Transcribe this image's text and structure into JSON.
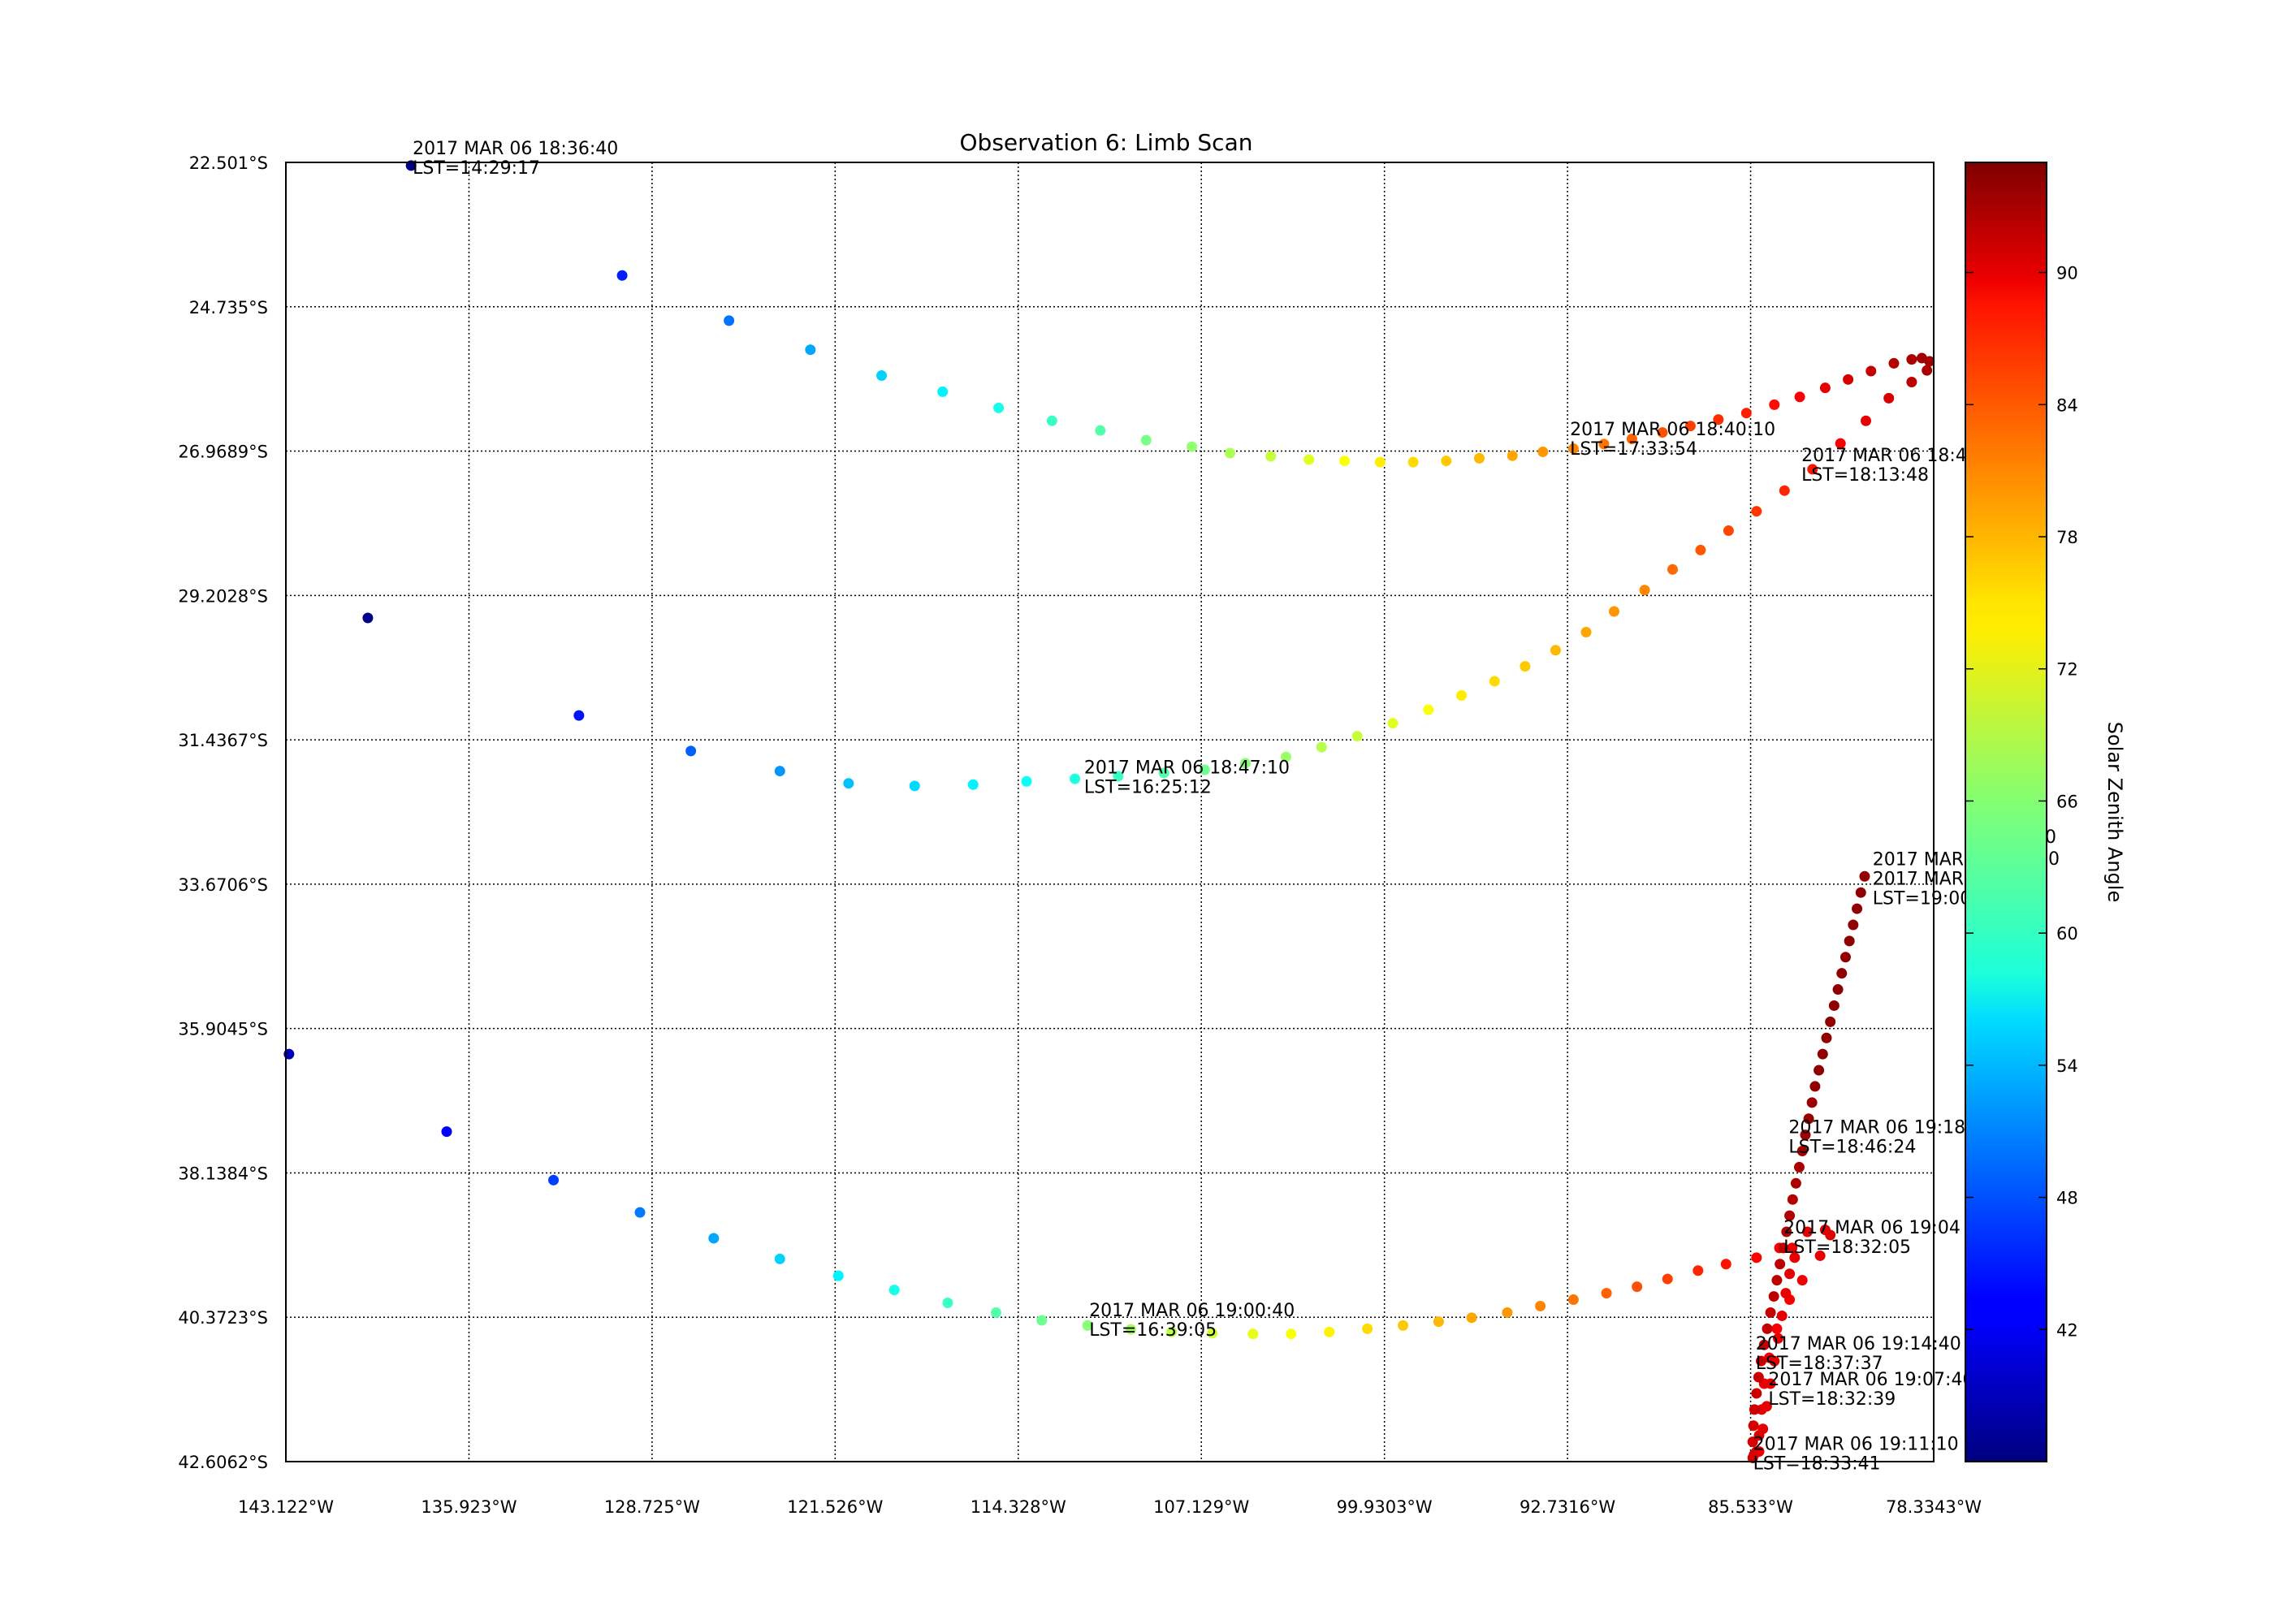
{
  "chart_data": {
    "type": "scatter",
    "title": "Observation 6: Limb Scan",
    "xlabel": "",
    "ylabel": "",
    "grid": true,
    "xlim": [
      -143.122,
      -78.3343
    ],
    "ylim": [
      -42.6062,
      -22.501
    ],
    "x_ticks": [
      {
        "value": -143.122,
        "label": "143.122°W"
      },
      {
        "value": -135.923,
        "label": "135.923°W"
      },
      {
        "value": -128.725,
        "label": "128.725°W"
      },
      {
        "value": -121.526,
        "label": "121.526°W"
      },
      {
        "value": -114.328,
        "label": "114.328°W"
      },
      {
        "value": -107.129,
        "label": "107.129°W"
      },
      {
        "value": -99.9303,
        "label": "99.9303°W"
      },
      {
        "value": -92.7316,
        "label": "92.7316°W"
      },
      {
        "value": -85.533,
        "label": "85.533°W"
      },
      {
        "value": -78.3343,
        "label": "78.3343°W"
      }
    ],
    "y_ticks": [
      {
        "value": -22.501,
        "label": "22.501°S"
      },
      {
        "value": -24.735,
        "label": "24.735°S"
      },
      {
        "value": -26.9689,
        "label": "26.9689°S"
      },
      {
        "value": -29.2028,
        "label": "29.2028°S"
      },
      {
        "value": -31.4367,
        "label": "31.4367°S"
      },
      {
        "value": -33.6706,
        "label": "33.6706°S"
      },
      {
        "value": -35.9045,
        "label": "35.9045°S"
      },
      {
        "value": -38.1384,
        "label": "38.1384°S"
      },
      {
        "value": -40.3723,
        "label": "40.3723°S"
      },
      {
        "value": -42.6062,
        "label": "42.6062°S"
      }
    ],
    "colorbar": {
      "label": "Solar Zenith Angle",
      "vmin": 36,
      "vmax": 95,
      "ticks": [
        42,
        48,
        54,
        60,
        66,
        72,
        78,
        84,
        90
      ],
      "colormap": "jet"
    },
    "series": [
      {
        "points": [
          [
            -138.2,
            -22.55,
            36.5
          ],
          [
            -129.9,
            -24.25,
            45.0
          ],
          [
            -125.7,
            -24.95,
            50.0
          ],
          [
            -122.5,
            -25.4,
            53.0
          ],
          [
            -119.7,
            -25.8,
            55.5
          ],
          [
            -117.3,
            -26.05,
            57.5
          ],
          [
            -115.1,
            -26.3,
            59.5
          ],
          [
            -113.0,
            -26.5,
            61.5
          ],
          [
            -111.1,
            -26.65,
            63.0
          ],
          [
            -109.3,
            -26.8,
            65.0
          ],
          [
            -107.5,
            -26.9,
            66.5
          ],
          [
            -106.0,
            -27.0,
            68.0
          ],
          [
            -104.4,
            -27.05,
            69.5
          ],
          [
            -102.9,
            -27.1,
            71.0
          ],
          [
            -101.5,
            -27.12,
            72.5
          ],
          [
            -100.1,
            -27.14,
            74.0
          ],
          [
            -98.8,
            -27.14,
            75.0
          ],
          [
            -97.5,
            -27.12,
            76.0
          ],
          [
            -96.2,
            -27.08,
            77.0
          ],
          [
            -94.9,
            -27.04,
            78.0
          ],
          [
            -93.7,
            -26.98,
            79.0
          ],
          [
            -92.5,
            -26.93,
            80.0
          ],
          [
            -91.3,
            -26.86,
            81.0
          ],
          [
            -90.2,
            -26.78,
            82.0
          ],
          [
            -89.0,
            -26.68,
            83.0
          ],
          [
            -87.9,
            -26.58,
            84.0
          ],
          [
            -86.8,
            -26.48,
            85.0
          ],
          [
            -85.7,
            -26.38,
            86.0
          ],
          [
            -84.6,
            -26.25,
            87.0
          ],
          [
            -83.6,
            -26.13,
            88.0
          ],
          [
            -82.6,
            -25.99,
            89.0
          ],
          [
            -81.7,
            -25.86,
            90.0
          ],
          [
            -80.8,
            -25.73,
            91.0
          ],
          [
            -79.9,
            -25.61,
            92.0
          ],
          [
            -79.2,
            -25.55,
            92.5
          ],
          [
            -78.8,
            -25.53,
            93.0
          ],
          [
            -78.5,
            -25.58,
            93.0
          ],
          [
            -78.6,
            -25.72,
            92.5
          ],
          [
            -79.2,
            -25.9,
            91.5
          ],
          [
            -80.1,
            -26.15,
            90.0
          ],
          [
            -81.0,
            -26.5,
            89.0
          ],
          [
            -82.0,
            -26.85,
            88.0
          ],
          [
            -83.1,
            -27.25,
            86.5
          ],
          [
            -84.2,
            -27.58,
            85.5
          ],
          [
            -85.3,
            -27.9,
            84.5
          ],
          [
            -86.4,
            -28.2,
            83.5
          ],
          [
            -87.5,
            -28.5,
            82.5
          ],
          [
            -88.6,
            -28.8,
            81.5
          ],
          [
            -89.7,
            -29.12,
            80.0
          ],
          [
            -90.9,
            -29.45,
            79.0
          ],
          [
            -92.0,
            -29.77,
            78.0
          ],
          [
            -93.2,
            -30.05,
            77.0
          ],
          [
            -94.4,
            -30.3,
            76.0
          ],
          [
            -95.6,
            -30.53,
            75.0
          ],
          [
            -96.9,
            -30.75,
            74.0
          ],
          [
            -98.2,
            -30.97,
            72.5
          ],
          [
            -99.6,
            -31.18,
            71.0
          ],
          [
            -101.0,
            -31.38,
            69.5
          ],
          [
            -102.4,
            -31.55,
            68.5
          ],
          [
            -103.8,
            -31.7,
            67.0
          ],
          [
            -105.4,
            -31.8,
            66.0
          ],
          [
            -107.0,
            -31.9,
            64.5
          ],
          [
            -108.6,
            -31.95,
            63.0
          ],
          [
            -110.4,
            -32.0,
            61.5
          ],
          [
            -112.1,
            -32.04,
            60.0
          ],
          [
            -114.0,
            -32.08,
            58.5
          ],
          [
            -116.1,
            -32.13,
            57.5
          ],
          [
            -118.4,
            -32.15,
            56.0
          ],
          [
            -121.0,
            -32.11,
            54.5
          ],
          [
            -123.7,
            -31.92,
            52.0
          ],
          [
            -127.2,
            -31.61,
            49.0
          ],
          [
            -131.6,
            -31.06,
            44.5
          ],
          [
            -139.9,
            -29.55,
            36.5
          ]
        ]
      },
      {
        "points": [
          [
            -143.0,
            -36.3,
            39.5
          ],
          [
            -136.8,
            -37.5,
            43.0
          ],
          [
            -132.6,
            -38.25,
            47.0
          ],
          [
            -129.2,
            -38.75,
            50.5
          ],
          [
            -126.3,
            -39.15,
            53.0
          ],
          [
            -123.7,
            -39.47,
            55.5
          ],
          [
            -121.4,
            -39.73,
            57.5
          ],
          [
            -119.2,
            -39.95,
            59.5
          ],
          [
            -117.1,
            -40.15,
            61.5
          ],
          [
            -115.2,
            -40.3,
            63.0
          ],
          [
            -113.4,
            -40.42,
            64.5
          ],
          [
            -111.6,
            -40.5,
            66.0
          ],
          [
            -109.9,
            -40.56,
            67.5
          ],
          [
            -108.3,
            -40.6,
            69.0
          ],
          [
            -106.7,
            -40.62,
            70.0
          ],
          [
            -105.1,
            -40.63,
            71.5
          ],
          [
            -103.6,
            -40.63,
            72.5
          ],
          [
            -102.1,
            -40.6,
            73.5
          ],
          [
            -100.6,
            -40.55,
            75.0
          ],
          [
            -99.2,
            -40.5,
            76.0
          ],
          [
            -97.8,
            -40.44,
            77.0
          ],
          [
            -96.5,
            -40.38,
            78.0
          ],
          [
            -95.1,
            -40.3,
            79.0
          ],
          [
            -93.8,
            -40.2,
            80.0
          ],
          [
            -92.5,
            -40.1,
            81.0
          ],
          [
            -91.2,
            -40.0,
            82.0
          ],
          [
            -90.0,
            -39.9,
            83.0
          ],
          [
            -88.8,
            -39.78,
            84.0
          ],
          [
            -87.6,
            -39.65,
            85.5
          ],
          [
            -86.5,
            -39.55,
            86.5
          ],
          [
            -85.3,
            -39.45,
            87.5
          ],
          [
            -84.4,
            -39.3,
            88.0
          ],
          [
            -83.9,
            -39.3,
            88.5
          ],
          [
            -83.3,
            -39.05,
            89.0
          ],
          [
            -82.6,
            -39.02,
            89.5
          ],
          [
            -82.4,
            -39.1,
            89.5
          ],
          [
            -82.8,
            -39.42,
            89.0
          ],
          [
            -83.5,
            -39.8,
            88.5
          ],
          [
            -84.0,
            -40.1,
            88.0
          ],
          [
            -84.5,
            -40.55,
            88.0
          ],
          [
            -84.8,
            -41.0,
            88.5
          ],
          [
            -85.0,
            -41.4,
            89.0
          ],
          [
            -85.1,
            -41.8,
            89.5
          ],
          [
            -85.2,
            -42.2,
            90.0
          ],
          [
            -85.3,
            -42.45,
            90.0
          ],
          [
            -85.4,
            -42.5,
            90.0
          ]
        ]
      },
      {
        "points": [
          [
            -85.45,
            -42.55,
            90.0
          ],
          [
            -85.45,
            -42.3,
            90.0
          ],
          [
            -85.42,
            -42.05,
            90.0
          ],
          [
            -85.38,
            -41.8,
            90.5
          ],
          [
            -85.3,
            -41.55,
            90.5
          ],
          [
            -85.22,
            -41.3,
            90.5
          ],
          [
            -85.12,
            -41.05,
            91.0
          ],
          [
            -85.0,
            -40.8,
            91.0
          ],
          [
            -84.88,
            -40.55,
            91.0
          ],
          [
            -84.75,
            -40.3,
            91.0
          ],
          [
            -84.62,
            -40.05,
            91.5
          ],
          [
            -84.5,
            -39.8,
            91.5
          ],
          [
            -84.38,
            -39.55,
            91.5
          ],
          [
            -84.25,
            -39.3,
            91.5
          ],
          [
            -84.12,
            -39.05,
            92.0
          ],
          [
            -84.0,
            -38.8,
            92.0
          ],
          [
            -83.88,
            -38.55,
            92.0
          ],
          [
            -83.75,
            -38.3,
            92.5
          ],
          [
            -83.62,
            -38.05,
            92.5
          ],
          [
            -83.5,
            -37.8,
            93.0
          ],
          [
            -83.38,
            -37.55,
            93.0
          ],
          [
            -83.25,
            -37.3,
            93.5
          ],
          [
            -83.12,
            -37.05,
            93.5
          ],
          [
            -83.0,
            -36.8,
            94.0
          ],
          [
            -82.85,
            -36.55,
            94.0
          ],
          [
            -82.7,
            -36.3,
            94.0
          ],
          [
            -82.55,
            -36.05,
            94.0
          ],
          [
            -82.4,
            -35.8,
            94.0
          ],
          [
            -82.25,
            -35.55,
            94.0
          ],
          [
            -82.1,
            -35.3,
            94.0
          ],
          [
            -81.95,
            -35.05,
            94.0
          ],
          [
            -81.8,
            -34.8,
            94.0
          ],
          [
            -81.65,
            -34.55,
            94.0
          ],
          [
            -81.5,
            -34.3,
            94.0
          ],
          [
            -81.35,
            -34.05,
            94.0
          ],
          [
            -81.2,
            -33.8,
            94.0
          ],
          [
            -81.05,
            -33.55,
            94.0
          ]
        ]
      },
      {
        "points": [
          [
            -85.2,
            -42.45,
            89.0
          ],
          [
            -85.05,
            -42.1,
            89.0
          ],
          [
            -84.9,
            -41.75,
            89.0
          ],
          [
            -84.75,
            -41.4,
            89.0
          ],
          [
            -84.6,
            -41.05,
            89.0
          ],
          [
            -84.45,
            -40.7,
            89.0
          ],
          [
            -84.3,
            -40.35,
            89.0
          ],
          [
            -84.15,
            -40.0,
            89.0
          ],
          [
            -84.0,
            -39.7,
            89.0
          ],
          [
            -83.8,
            -39.45,
            89.0
          ]
        ]
      }
    ],
    "annotations": [
      {
        "lon": -138.2,
        "lat": -22.55,
        "lines": [
          "2017 MAR 06 18:36:40",
          "LST=14:29:17"
        ]
      },
      {
        "lon": -92.7,
        "lat": -26.9,
        "lines": [
          "2017 MAR 06 18:40:10",
          "LST=17:33:54"
        ]
      },
      {
        "lon": -83.6,
        "lat": -27.3,
        "lines": [
          "2017 MAR 06 18:4",
          "LST=18:13:48"
        ]
      },
      {
        "lon": -111.8,
        "lat": -32.13,
        "lines": [
          "2017 MAR 06 18:47:10",
          "LST=16:25:12"
        ]
      },
      {
        "lon": -111.6,
        "lat": -40.53,
        "lines": [
          "2017 MAR 06 19:00:40",
          "LST=16:39:05"
        ]
      },
      {
        "lon": -80.8,
        "lat": -33.55,
        "lines": [
          "2017 MAR 0",
          "2017 MAR 0",
          "LST=19:00:2"
        ]
      },
      {
        "lon": -84.1,
        "lat": -37.7,
        "lines": [
          "2017 MAR 06 19:18",
          "LST=18:46:24"
        ]
      },
      {
        "lon": -84.3,
        "lat": -39.25,
        "lines": [
          "2017 MAR 06 19:04",
          "LST=18:32:05"
        ]
      },
      {
        "lon": -85.4,
        "lat": -41.05,
        "lines": [
          "2017 MAR 06 19:14:40",
          "LST=18:37:37"
        ]
      },
      {
        "lon": -84.9,
        "lat": -41.6,
        "lines": [
          "2017 MAR 06 19:07:40",
          "LST=18:32:39"
        ]
      },
      {
        "lon": -85.5,
        "lat": -42.6,
        "lines": [
          "2017 MAR 06 19:11:10",
          "LST=18:33:41"
        ]
      }
    ],
    "overlap_label_fragments": [
      "00",
      "0"
    ]
  }
}
